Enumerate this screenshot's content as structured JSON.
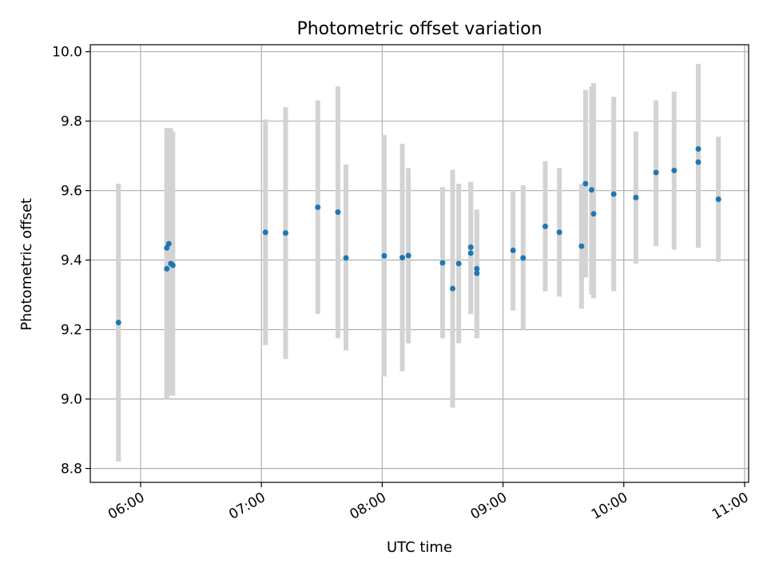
{
  "chart_data": {
    "type": "scatter",
    "title": "Photometric offset variation",
    "xlabel": "UTC time",
    "ylabel": "Photometric offset",
    "x_ticks": [
      "06:00",
      "07:00",
      "08:00",
      "09:00",
      "10:00",
      "11:00"
    ],
    "y_ticks": [
      "8.8",
      "9.0",
      "9.2",
      "9.4",
      "9.6",
      "9.8",
      "10.0"
    ],
    "xlim": [
      "05:35",
      "11:02"
    ],
    "ylim": [
      8.76,
      10.02
    ],
    "grid": true,
    "colors": {
      "points": "#1f77b4",
      "error_bars": "#d3d3d3",
      "grid": "#b0b0b0"
    },
    "series": [
      {
        "points": [
          {
            "x": "05:49",
            "y": 9.22,
            "lo": 8.82,
            "hi": 9.62
          },
          {
            "x": "06:13",
            "y": 9.375,
            "lo": 9.0,
            "hi": 9.78
          },
          {
            "x": "06:13",
            "y": 9.435,
            "lo": 9.0,
            "hi": 9.78
          },
          {
            "x": "06:14",
            "y": 9.447,
            "lo": 9.01,
            "hi": 9.78
          },
          {
            "x": "06:15",
            "y": 9.39,
            "lo": 9.01,
            "hi": 9.78
          },
          {
            "x": "06:16",
            "y": 9.385,
            "lo": 9.01,
            "hi": 9.77
          },
          {
            "x": "07:02",
            "y": 9.48,
            "lo": 9.155,
            "hi": 9.805
          },
          {
            "x": "07:12",
            "y": 9.478,
            "lo": 9.115,
            "hi": 9.84
          },
          {
            "x": "07:28",
            "y": 9.552,
            "lo": 9.245,
            "hi": 9.86
          },
          {
            "x": "07:38",
            "y": 9.538,
            "lo": 9.175,
            "hi": 9.9
          },
          {
            "x": "07:42",
            "y": 9.406,
            "lo": 9.14,
            "hi": 9.675
          },
          {
            "x": "08:01",
            "y": 9.412,
            "lo": 9.065,
            "hi": 9.76
          },
          {
            "x": "08:10",
            "y": 9.407,
            "lo": 9.08,
            "hi": 9.735
          },
          {
            "x": "08:13",
            "y": 9.413,
            "lo": 9.16,
            "hi": 9.665
          },
          {
            "x": "08:30",
            "y": 9.392,
            "lo": 9.175,
            "hi": 9.61
          },
          {
            "x": "08:35",
            "y": 9.318,
            "lo": 8.975,
            "hi": 9.66
          },
          {
            "x": "08:38",
            "y": 9.39,
            "lo": 9.16,
            "hi": 9.62
          },
          {
            "x": "08:44",
            "y": 9.42,
            "lo": 9.245,
            "hi": 9.625
          },
          {
            "x": "08:44",
            "y": 9.437,
            "lo": 9.245,
            "hi": 9.625
          },
          {
            "x": "08:47",
            "y": 9.362,
            "lo": 9.175,
            "hi": 9.545
          },
          {
            "x": "08:47",
            "y": 9.375,
            "lo": 9.175,
            "hi": 9.545
          },
          {
            "x": "09:05",
            "y": 9.428,
            "lo": 9.255,
            "hi": 9.6
          },
          {
            "x": "09:10",
            "y": 9.406,
            "lo": 9.2,
            "hi": 9.615
          },
          {
            "x": "09:21",
            "y": 9.497,
            "lo": 9.31,
            "hi": 9.685
          },
          {
            "x": "09:28",
            "y": 9.48,
            "lo": 9.295,
            "hi": 9.665
          },
          {
            "x": "09:39",
            "y": 9.44,
            "lo": 9.26,
            "hi": 9.62
          },
          {
            "x": "09:41",
            "y": 9.62,
            "lo": 9.35,
            "hi": 9.89
          },
          {
            "x": "09:44",
            "y": 9.602,
            "lo": 9.3,
            "hi": 9.9
          },
          {
            "x": "09:45",
            "y": 9.533,
            "lo": 9.29,
            "hi": 9.91
          },
          {
            "x": "09:55",
            "y": 9.59,
            "lo": 9.31,
            "hi": 9.87
          },
          {
            "x": "10:06",
            "y": 9.58,
            "lo": 9.39,
            "hi": 9.77
          },
          {
            "x": "10:16",
            "y": 9.652,
            "lo": 9.44,
            "hi": 9.86
          },
          {
            "x": "10:25",
            "y": 9.658,
            "lo": 9.43,
            "hi": 9.885
          },
          {
            "x": "10:37",
            "y": 9.682,
            "lo": 9.435,
            "hi": 9.93
          },
          {
            "x": "10:37",
            "y": 9.72,
            "lo": 9.47,
            "hi": 9.965
          },
          {
            "x": "10:47",
            "y": 9.575,
            "lo": 9.395,
            "hi": 9.755
          }
        ]
      }
    ]
  }
}
